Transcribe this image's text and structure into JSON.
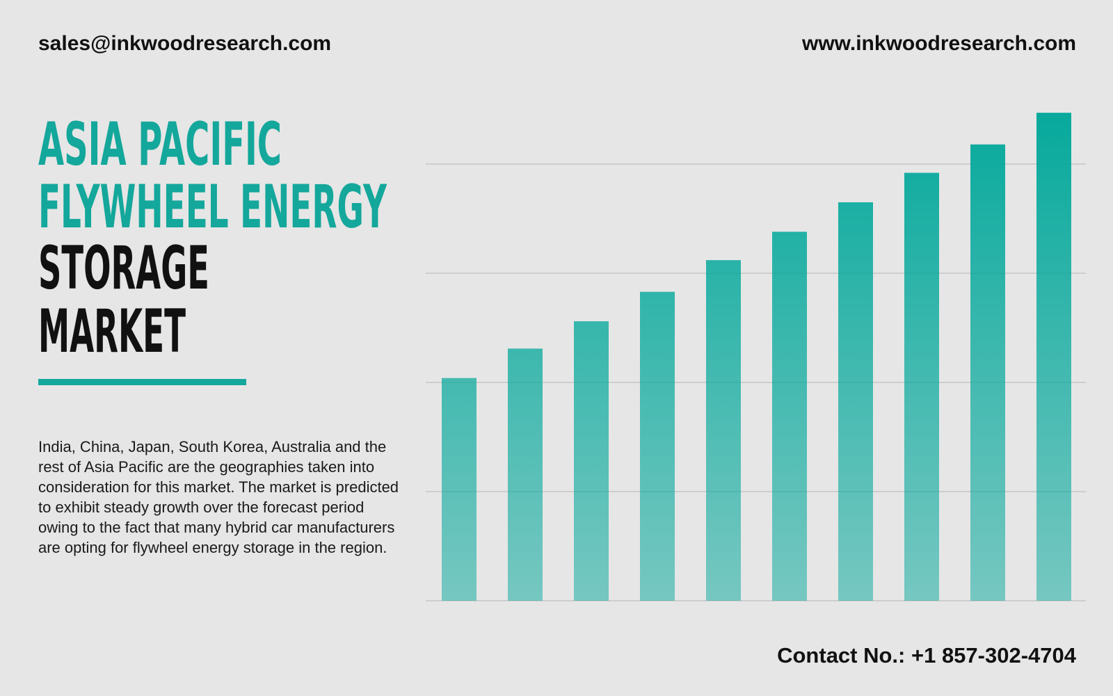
{
  "header": {
    "email": "sales@inkwoodresearch.com",
    "website": "www.inkwoodresearch.com"
  },
  "title": {
    "highlight": [
      "ASIA PACIFIC",
      "FLYWHEEL ENERGY"
    ],
    "rest": [
      "STORAGE",
      "MARKET"
    ]
  },
  "description": "India, China, Japan, South Korea, Australia and the rest of Asia Pacific are the geographies taken into consideration for this market. The market is predicted to exhibit steady growth over the forecast period owing to the fact that many hybrid car manufacturers are opting for flywheel energy storage in the region.",
  "contact": "Contact No.: +1 857-302-4704",
  "chart_data": {
    "type": "bar",
    "values": [
      2.04,
      2.31,
      2.56,
      2.83,
      3.12,
      3.38,
      3.65,
      3.92,
      4.18,
      4.47
    ],
    "color": "#06a99c",
    "ylim": [
      0,
      4.5
    ],
    "yticks": [
      0,
      1,
      2,
      3,
      4
    ],
    "grid": true
  }
}
